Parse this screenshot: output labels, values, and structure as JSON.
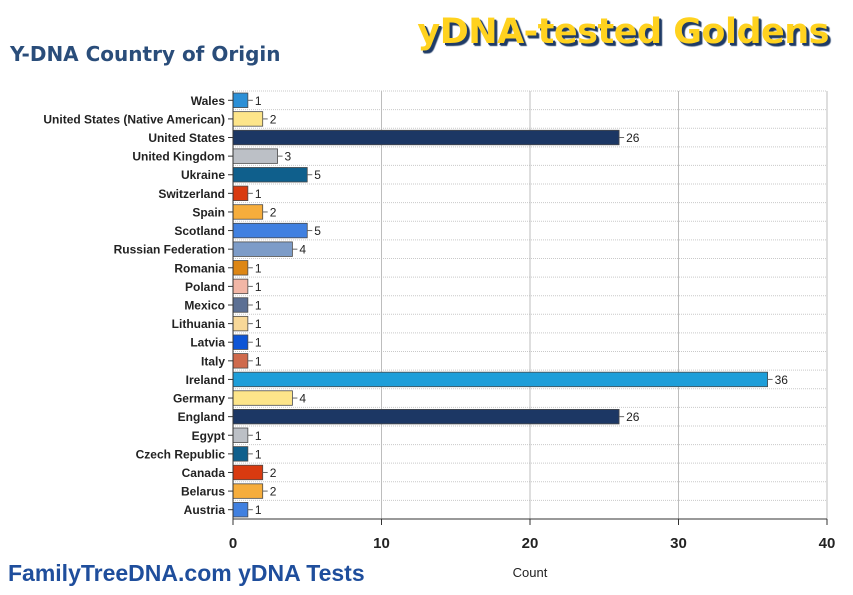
{
  "banner": "yDNA-tested Goldens",
  "footer": "FamilyTreeDNA.com yDNA Tests",
  "chart_data": {
    "type": "bar",
    "orientation": "horizontal",
    "title": "Y-DNA Country of Origin",
    "xlabel": "Count",
    "ylabel": "",
    "xlim": [
      0,
      40
    ],
    "xticks": [
      0,
      10,
      20,
      30,
      40
    ],
    "grid": true,
    "data_labels": true,
    "categories": [
      "Wales",
      "United States (Native American)",
      "United States",
      "United Kingdom",
      "Ukraine",
      "Switzerland",
      "Spain",
      "Scotland",
      "Russian Federation",
      "Romania",
      "Poland",
      "Mexico",
      "Lithuania",
      "Latvia",
      "Italy",
      "Ireland",
      "Germany",
      "England",
      "Egypt",
      "Czech Republic",
      "Canada",
      "Belarus",
      "Austria"
    ],
    "values": [
      1,
      2,
      26,
      3,
      5,
      1,
      2,
      5,
      4,
      1,
      1,
      1,
      1,
      1,
      1,
      36,
      4,
      26,
      1,
      1,
      2,
      2,
      1
    ],
    "colors": [
      "#2b8fd6",
      "#fde58a",
      "#1c3764",
      "#bcc0c6",
      "#0f5f8c",
      "#d93a10",
      "#f6ad3c",
      "#4080e0",
      "#7d9cc8",
      "#dd8614",
      "#f2b6a6",
      "#5c7094",
      "#f8d898",
      "#0d55d6",
      "#cf6a4c",
      "#1e9ed9",
      "#fde58a",
      "#1c3764",
      "#bcc0c6",
      "#0f5f8c",
      "#d93a10",
      "#f6ad3c",
      "#4080e0"
    ]
  }
}
